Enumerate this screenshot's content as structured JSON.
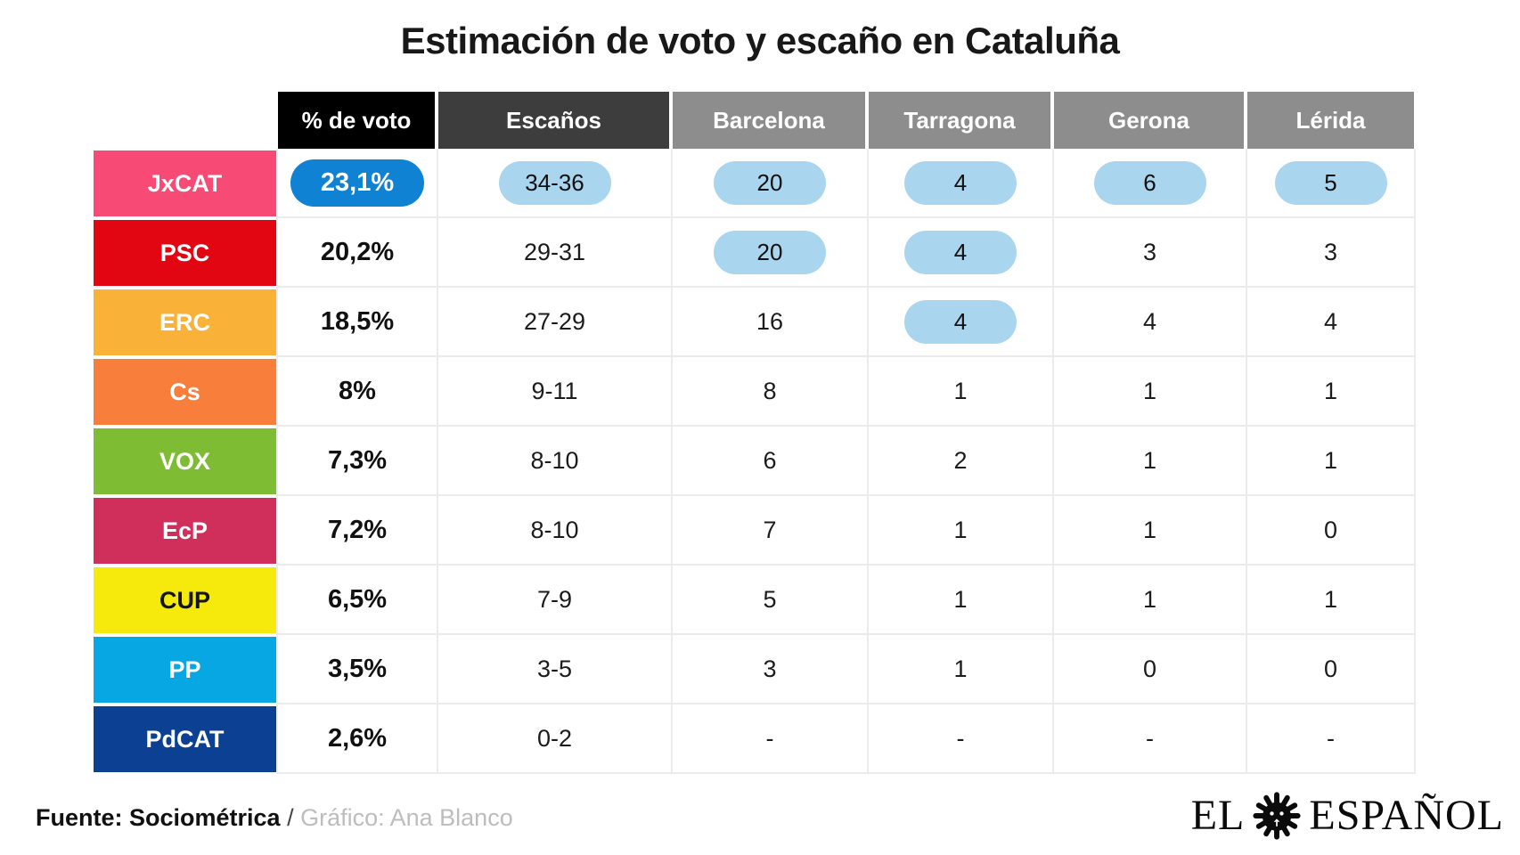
{
  "title": "Estimación de voto y escaño en Cataluña",
  "chart_data": {
    "type": "table",
    "title": "Estimación de voto y escaño en Cataluña",
    "columns": [
      "% de voto",
      "Escaños",
      "Barcelona",
      "Tarragona",
      "Gerona",
      "Lérida"
    ],
    "column_header_colors": {
      "% de voto": "#000000",
      "Escaños": "#3d3d3d",
      "provinces": "#8d8d8d"
    },
    "highlight_pill_color": "#a9d5ee",
    "vote_pill_color": "#0f82d4",
    "rows": [
      {
        "party": "JxCAT",
        "color": "#f74a75",
        "label_color": "#ffffff",
        "values": [
          "23,1%",
          "34-36",
          "20",
          "4",
          "6",
          "5"
        ],
        "vote_pill": true,
        "highlighted": [
          true,
          true,
          true,
          true,
          true
        ]
      },
      {
        "party": "PSC",
        "color": "#e20613",
        "label_color": "#ffffff",
        "values": [
          "20,2%",
          "29-31",
          "20",
          "4",
          "3",
          "3"
        ],
        "vote_pill": false,
        "highlighted": [
          false,
          true,
          true,
          false,
          false
        ]
      },
      {
        "party": "ERC",
        "color": "#f9b237",
        "label_color": "#ffffff",
        "values": [
          "18,5%",
          "27-29",
          "16",
          "4",
          "4",
          "4"
        ],
        "vote_pill": false,
        "highlighted": [
          false,
          false,
          true,
          false,
          false
        ]
      },
      {
        "party": "Cs",
        "color": "#f87e3c",
        "label_color": "#ffffff",
        "values": [
          "8%",
          "9-11",
          "8",
          "1",
          "1",
          "1"
        ],
        "vote_pill": false,
        "highlighted": [
          false,
          false,
          false,
          false,
          false
        ]
      },
      {
        "party": "VOX",
        "color": "#7dbc33",
        "label_color": "#ffffff",
        "values": [
          "7,3%",
          "8-10",
          "6",
          "2",
          "1",
          "1"
        ],
        "vote_pill": false,
        "highlighted": [
          false,
          false,
          false,
          false,
          false
        ]
      },
      {
        "party": "EcP",
        "color": "#d02f5c",
        "label_color": "#ffffff",
        "values": [
          "7,2%",
          "8-10",
          "7",
          "1",
          "1",
          "0"
        ],
        "vote_pill": false,
        "highlighted": [
          false,
          false,
          false,
          false,
          false
        ]
      },
      {
        "party": "CUP",
        "color": "#f5ea0b",
        "label_color": "#151515",
        "values": [
          "6,5%",
          "7-9",
          "5",
          "1",
          "1",
          "1"
        ],
        "vote_pill": false,
        "highlighted": [
          false,
          false,
          false,
          false,
          false
        ]
      },
      {
        "party": "PP",
        "color": "#06a7e2",
        "label_color": "#ffffff",
        "values": [
          "3,5%",
          "3-5",
          "3",
          "1",
          "0",
          "0"
        ],
        "vote_pill": false,
        "highlighted": [
          false,
          false,
          false,
          false,
          false
        ]
      },
      {
        "party": "PdCAT",
        "color": "#0c4092",
        "label_color": "#ffffff",
        "values": [
          "2,6%",
          "0-2",
          "-",
          "-",
          "-",
          "-"
        ],
        "vote_pill": false,
        "highlighted": [
          false,
          false,
          false,
          false,
          false
        ]
      }
    ]
  },
  "footer": {
    "source": "Fuente: Sociométrica",
    "separator": " / ",
    "credit": "Gráfico: Ana Blanco"
  },
  "logo": {
    "left": "EL",
    "right": "ESPAÑOL"
  }
}
